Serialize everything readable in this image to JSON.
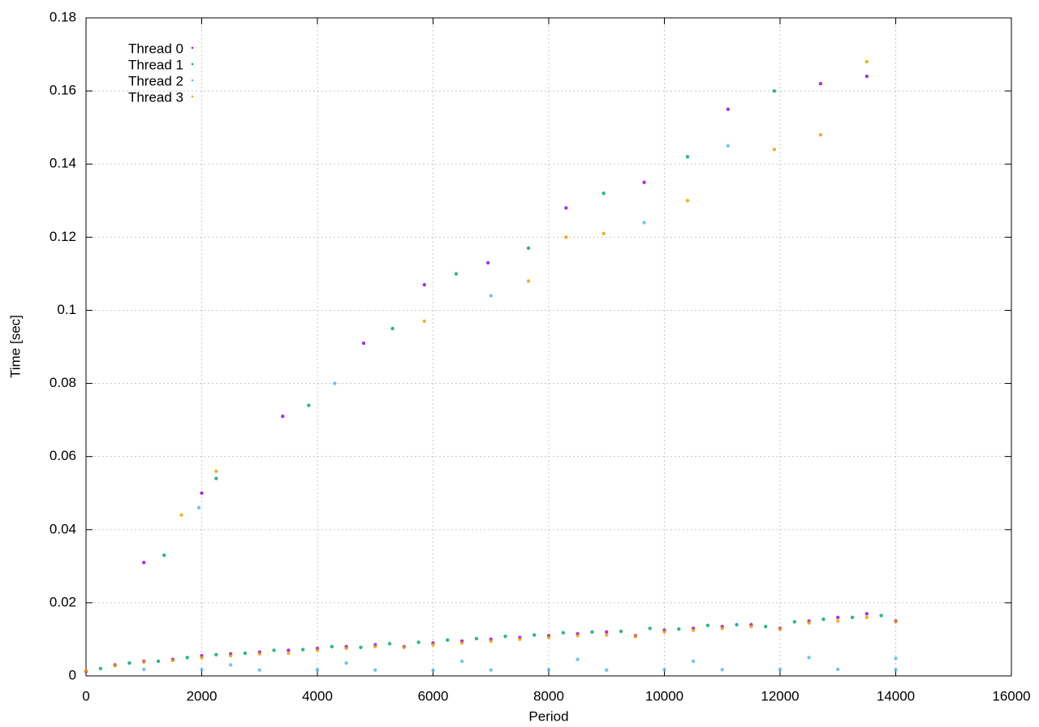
{
  "chart_data": {
    "type": "scatter",
    "xlabel": "Period",
    "ylabel": "Time [sec]",
    "xlim": [
      0,
      16000
    ],
    "xticks": [
      0,
      2000,
      4000,
      6000,
      8000,
      10000,
      12000,
      14000,
      16000
    ],
    "ylim": [
      0,
      0.18
    ],
    "yticks": [
      0,
      0.02,
      0.04,
      0.06,
      0.08,
      0.1,
      0.12,
      0.14,
      0.16,
      0.18
    ],
    "grid": true,
    "legend": "upper-left",
    "series": [
      {
        "name": "Thread 0",
        "color": "#9400d3",
        "x": [
          0,
          500,
          1000,
          1500,
          2000,
          2500,
          3000,
          3500,
          4000,
          4500,
          5000,
          5500,
          6000,
          6500,
          7000,
          7500,
          8000,
          8500,
          9000,
          9500,
          10000,
          10500,
          11000,
          11500,
          12000,
          12500,
          13000,
          13500,
          14000,
          1000,
          2000,
          3400,
          4800,
          5850,
          6950,
          8300,
          9650,
          11100,
          12700,
          13500
        ],
        "values": [
          0.0012,
          0.003,
          0.004,
          0.0045,
          0.0055,
          0.006,
          0.0065,
          0.007,
          0.0075,
          0.008,
          0.0085,
          0.008,
          0.009,
          0.0095,
          0.01,
          0.0105,
          0.011,
          0.0115,
          0.012,
          0.011,
          0.0125,
          0.013,
          0.0135,
          0.014,
          0.013,
          0.015,
          0.016,
          0.017,
          0.015,
          0.031,
          0.05,
          0.071,
          0.091,
          0.107,
          0.113,
          0.128,
          0.135,
          0.155,
          0.162,
          0.164
        ]
      },
      {
        "name": "Thread 1",
        "color": "#009e73",
        "x": [
          250,
          750,
          1250,
          1750,
          2250,
          2750,
          3250,
          3750,
          4250,
          4750,
          5250,
          5750,
          6250,
          6750,
          7250,
          7750,
          8250,
          8750,
          9250,
          9750,
          10250,
          10750,
          11250,
          11750,
          12250,
          12750,
          13250,
          13750,
          1350,
          2250,
          3850,
          5300,
          6400,
          7650,
          8950,
          10400,
          11900
        ],
        "values": [
          0.002,
          0.0035,
          0.004,
          0.005,
          0.0058,
          0.0062,
          0.007,
          0.0072,
          0.008,
          0.0078,
          0.0088,
          0.0092,
          0.0098,
          0.0102,
          0.0108,
          0.0112,
          0.0118,
          0.012,
          0.0122,
          0.013,
          0.0128,
          0.0138,
          0.014,
          0.0135,
          0.0148,
          0.0155,
          0.016,
          0.0165,
          0.033,
          0.054,
          0.074,
          0.095,
          0.11,
          0.117,
          0.132,
          0.142,
          0.16
        ]
      },
      {
        "name": "Thread 2",
        "color": "#56b4e9",
        "x": [
          1000,
          2000,
          3000,
          4000,
          5000,
          6000,
          7000,
          8000,
          9000,
          10000,
          11000,
          12000,
          13000,
          14000,
          2500,
          4500,
          6500,
          8500,
          10500,
          12500,
          14000,
          1950,
          4300,
          7000,
          9650,
          11100
        ],
        "values": [
          0.0018,
          0.0017,
          0.0016,
          0.0017,
          0.0016,
          0.0015,
          0.0016,
          0.0017,
          0.0016,
          0.0017,
          0.0017,
          0.0018,
          0.0018,
          0.0017,
          0.003,
          0.0035,
          0.004,
          0.0045,
          0.004,
          0.005,
          0.0048,
          0.046,
          0.08,
          0.104,
          0.124,
          0.145
        ]
      },
      {
        "name": "Thread 3",
        "color": "#e69f00",
        "x": [
          0,
          500,
          1000,
          1500,
          2000,
          2500,
          3000,
          3500,
          4000,
          4500,
          5000,
          5500,
          6000,
          6500,
          7000,
          7500,
          8000,
          8500,
          9000,
          9500,
          10000,
          10500,
          11000,
          11500,
          12000,
          12500,
          13000,
          13500,
          14000,
          1650,
          2250,
          5850,
          7650,
          8300,
          8950,
          10400,
          11900,
          12700,
          13500
        ],
        "values": [
          0.0014,
          0.0028,
          0.0038,
          0.0042,
          0.005,
          0.0055,
          0.006,
          0.0062,
          0.007,
          0.0075,
          0.008,
          0.0078,
          0.0085,
          0.009,
          0.0095,
          0.01,
          0.0105,
          0.011,
          0.0112,
          0.0108,
          0.012,
          0.0125,
          0.013,
          0.0135,
          0.0128,
          0.0145,
          0.015,
          0.016,
          0.0148,
          0.044,
          0.056,
          0.097,
          0.108,
          0.12,
          0.121,
          0.13,
          0.144,
          0.148,
          0.168
        ]
      }
    ]
  }
}
